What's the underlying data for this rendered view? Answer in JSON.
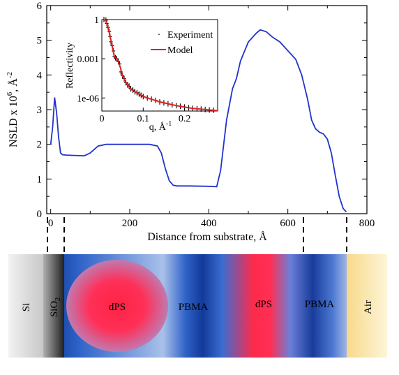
{
  "chart_data": [
    {
      "type": "line",
      "xlabel": "Distance from substrate, Å",
      "ylabel_main": "NSLD x 10",
      "ylabel_exp": "6",
      "ylabel_unit": ", Å",
      "ylabel_unit_exp": "-2",
      "xlim": [
        -10,
        800
      ],
      "ylim": [
        0,
        6
      ],
      "xticks": [
        0,
        200,
        400,
        600,
        800
      ],
      "yticks": [
        0,
        1,
        2,
        3,
        4,
        5,
        6
      ],
      "series": [
        {
          "color": "#2233cc",
          "x": [
            0,
            5,
            10,
            15,
            20,
            25,
            30,
            40,
            60,
            85,
            100,
            110,
            120,
            140,
            200,
            250,
            270,
            280,
            290,
            300,
            310,
            320,
            350,
            400,
            420,
            430,
            445,
            460,
            470,
            480,
            500,
            520,
            530,
            545,
            560,
            580,
            600,
            620,
            635,
            650,
            660,
            670,
            680,
            690,
            700,
            710,
            720,
            730,
            740,
            748
          ],
          "y": [
            2.0,
            2.5,
            3.35,
            2.9,
            2.2,
            1.75,
            1.7,
            1.69,
            1.68,
            1.67,
            1.75,
            1.85,
            1.95,
            2.0,
            2.0,
            2.0,
            1.95,
            1.75,
            1.3,
            0.95,
            0.82,
            0.8,
            0.8,
            0.79,
            0.78,
            1.25,
            2.7,
            3.6,
            3.9,
            4.4,
            4.95,
            5.2,
            5.3,
            5.25,
            5.1,
            4.95,
            4.7,
            4.45,
            4.0,
            3.3,
            2.7,
            2.45,
            2.35,
            2.3,
            2.15,
            1.75,
            1.1,
            0.5,
            0.15,
            0.05
          ]
        }
      ]
    },
    {
      "type": "scatter",
      "ylabel": "Reflectivity",
      "xlabel_main": "q, Å",
      "xlabel_exp": "-1",
      "xlim": [
        0,
        0.28
      ],
      "ylim_log10": [
        -7,
        0
      ],
      "xticks": [
        0,
        0.1,
        0.2
      ],
      "yticks": [
        {
          "value": 1,
          "label": "1"
        },
        {
          "value": 0.001,
          "label": "0.001"
        },
        {
          "value": 1e-06,
          "label": "1e-06"
        }
      ],
      "legend": {
        "placement": "top-right",
        "entries": [
          "Experiment",
          "Model"
        ]
      },
      "series": [
        {
          "name": "Experiment",
          "color": "#000000",
          "x": [
            0.005,
            0.01,
            0.012,
            0.015,
            0.018,
            0.02,
            0.022,
            0.025,
            0.028,
            0.03,
            0.033,
            0.036,
            0.04,
            0.043,
            0.046,
            0.05,
            0.054,
            0.058,
            0.062,
            0.066,
            0.07,
            0.075,
            0.08,
            0.085,
            0.09,
            0.095,
            0.1,
            0.11,
            0.12,
            0.13,
            0.14,
            0.15,
            0.16,
            0.17,
            0.18,
            0.19,
            0.2,
            0.21,
            0.22,
            0.23,
            0.24,
            0.25,
            0.26,
            0.27
          ],
          "y": [
            1,
            0.9,
            0.5,
            0.25,
            0.12,
            0.05,
            0.02,
            0.01,
            0.004,
            0.0015,
            0.0012,
            0.001,
            0.0006,
            0.0004,
            0.0001,
            5e-05,
            3e-05,
            1.5e-05,
            1e-05,
            8e-06,
            5e-06,
            4e-06,
            3e-06,
            2.5e-06,
            2e-06,
            1.6e-06,
            1.3e-06,
            1e-06,
            8e-07,
            6.5e-07,
            5e-07,
            4.2e-07,
            3.6e-07,
            3e-07,
            2.6e-07,
            2.3e-07,
            2e-07,
            1.8e-07,
            1.6e-07,
            1.5e-07,
            1.4e-07,
            1.3e-07,
            1.2e-07,
            1.15e-07
          ]
        },
        {
          "name": "Model",
          "color": "#e02020",
          "x": [
            0.005,
            0.01,
            0.015,
            0.02,
            0.025,
            0.03,
            0.035,
            0.04,
            0.045,
            0.05,
            0.06,
            0.07,
            0.08,
            0.09,
            0.1,
            0.12,
            0.14,
            0.16,
            0.18,
            0.2,
            0.22,
            0.24,
            0.26,
            0.28
          ],
          "y": [
            1,
            0.85,
            0.25,
            0.05,
            0.01,
            0.0015,
            0.0011,
            0.0006,
            0.0002,
            5e-05,
            1.2e-05,
            5e-06,
            3e-06,
            2e-06,
            1.3e-06,
            8e-07,
            5e-07,
            3.6e-07,
            2.6e-07,
            2e-07,
            1.6e-07,
            1.4e-07,
            1.2e-07,
            1.1e-07
          ]
        }
      ]
    }
  ],
  "layers": [
    {
      "label": "Si"
    },
    {
      "label": "SiO",
      "sub": "2"
    },
    {
      "label": "dPS"
    },
    {
      "label": "PBMA"
    },
    {
      "label": "dPS"
    },
    {
      "label": "PBMA"
    },
    {
      "label": "Air"
    }
  ]
}
